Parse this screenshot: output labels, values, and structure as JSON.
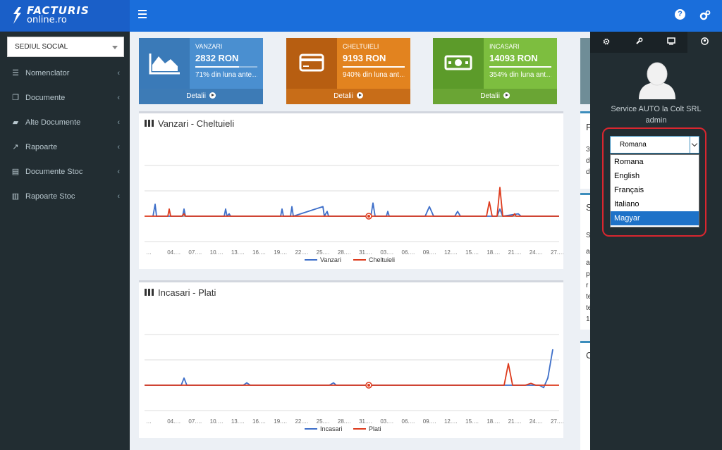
{
  "logo": {
    "line1": "FACTURIS",
    "line2": "online.ro"
  },
  "header": {
    "help_icon": "question-circle-icon",
    "settings_icon": "cogs-icon"
  },
  "sidebar": {
    "company": "SEDIUL SOCIAL",
    "items": [
      {
        "label": "Nomenclator",
        "icon": "list-icon"
      },
      {
        "label": "Documente",
        "icon": "copy-icon"
      },
      {
        "label": "Alte Documente",
        "icon": "folder-open-icon"
      },
      {
        "label": "Rapoarte",
        "icon": "line-chart-icon"
      },
      {
        "label": "Documente Stoc",
        "icon": "file-text-icon"
      },
      {
        "label": "Rapoarte Stoc",
        "icon": "bar-chart-icon"
      }
    ]
  },
  "boxes": [
    {
      "title": "VANZARI",
      "value": "2832 RON",
      "desc": "71% din luna ante…",
      "progress": 0.71,
      "footer": "Detalii",
      "color": "#4a8fd0",
      "icon": "area-chart-icon"
    },
    {
      "title": "CHELTUIELI",
      "value": "9193 RON",
      "desc": "940% din luna ant…",
      "progress": 1.0,
      "footer": "Detalii",
      "color": "#e2831f",
      "icon": "credit-card-icon"
    },
    {
      "title": "INCASARI",
      "value": "14093 RON",
      "desc": "354% din luna ant…",
      "progress": 1.0,
      "footer": "Detalii",
      "color": "#7dbe3f",
      "icon": "money-icon"
    }
  ],
  "chart_data": [
    {
      "type": "line",
      "title": "Vanzari - Cheltuieli",
      "x_ticks": [
        "…",
        "04.…",
        "07.…",
        "10.…",
        "13.…",
        "16.…",
        "19.…",
        "22.…",
        "25.…",
        "28.…",
        "31.…",
        "03.…",
        "06.…",
        "09.…",
        "12.…",
        "15.…",
        "18.…",
        "21.…",
        "24.…",
        "27.…"
      ],
      "grid": true,
      "legend_position": "bottom",
      "series": [
        {
          "name": "Vanzari",
          "color": "#3e6fc9",
          "values": [
            0,
            0,
            0,
            0,
            0,
            0,
            0,
            0,
            0,
            0,
            0,
            0,
            0,
            0,
            0,
            0,
            0,
            0,
            0,
            0,
            0,
            0,
            0,
            0,
            0,
            0,
            0,
            0,
            0,
            0,
            0,
            0,
            0,
            0,
            0,
            0,
            0,
            0,
            0,
            0,
            0,
            0,
            0,
            0,
            0,
            0,
            0,
            0,
            0,
            0,
            0,
            0,
            0,
            0,
            0,
            0,
            0,
            0,
            0,
            0,
            0
          ]
        },
        {
          "name": "Cheltuieli",
          "color": "#dd3a1c",
          "values": [
            0,
            0,
            0,
            0,
            0,
            0,
            0,
            0,
            0,
            0,
            0,
            0,
            0,
            0,
            0,
            0,
            0,
            0,
            0,
            0,
            0,
            0,
            0,
            0,
            0,
            0,
            0,
            0,
            0,
            0,
            0,
            0,
            0,
            0,
            0,
            0,
            0,
            0,
            0,
            0,
            0,
            0,
            0,
            0,
            0,
            0,
            0,
            0,
            0,
            0,
            0,
            0,
            0,
            0,
            0,
            0,
            0,
            0,
            0,
            0,
            0
          ]
        }
      ]
    },
    {
      "type": "line",
      "title": "Incasari - Plati",
      "x_ticks": [
        "…",
        "04.…",
        "07.…",
        "10.…",
        "13.…",
        "16.…",
        "19.…",
        "22.…",
        "25.…",
        "28.…",
        "31.…",
        "03.…",
        "06.…",
        "09.…",
        "12.…",
        "15.…",
        "18.…",
        "21.…",
        "24.…",
        "27.…"
      ],
      "grid": true,
      "legend_position": "bottom",
      "series": [
        {
          "name": "Incasari",
          "color": "#3e6fc9",
          "values": [
            0,
            0,
            0,
            0,
            0,
            0,
            0,
            0,
            0,
            0,
            0,
            0,
            0,
            0,
            0,
            0,
            0,
            0,
            0,
            0,
            0,
            0,
            0,
            0,
            0,
            0,
            0,
            0,
            0,
            0,
            0,
            0,
            0,
            0,
            0,
            0,
            0,
            0,
            0,
            0,
            0,
            0,
            0,
            0,
            0,
            0,
            0,
            0,
            0,
            0,
            0,
            0,
            0,
            0,
            0,
            0,
            0,
            0,
            0,
            0,
            0
          ]
        },
        {
          "name": "Plati",
          "color": "#dd3a1c",
          "values": [
            0,
            0,
            0,
            0,
            0,
            0,
            0,
            0,
            0,
            0,
            0,
            0,
            0,
            0,
            0,
            0,
            0,
            0,
            0,
            0,
            0,
            0,
            0,
            0,
            0,
            0,
            0,
            0,
            0,
            0,
            0,
            0,
            0,
            0,
            0,
            0,
            0,
            0,
            0,
            0,
            0,
            0,
            0,
            0,
            0,
            0,
            0,
            0,
            0,
            0,
            0,
            0,
            0,
            0,
            0,
            0,
            0,
            0,
            0,
            0,
            0
          ]
        }
      ]
    }
  ],
  "chart_shapes": {
    "c1_vanzari": [
      [
        12,
        0
      ],
      [
        15,
        0.5
      ],
      [
        17,
        0
      ],
      [
        54,
        0
      ],
      [
        56,
        0.3
      ],
      [
        58,
        0
      ],
      [
        113,
        0
      ],
      [
        115,
        0.3
      ],
      [
        117,
        0
      ],
      [
        120,
        0.1
      ],
      [
        122,
        0
      ],
      [
        193,
        0
      ],
      [
        195,
        0.3
      ],
      [
        197,
        0
      ],
      [
        207,
        0
      ],
      [
        209,
        0.4
      ],
      [
        211,
        0
      ],
      [
        253,
        0.4
      ],
      [
        255,
        0
      ],
      [
        259,
        0.2
      ],
      [
        261,
        0
      ],
      [
        321,
        0
      ],
      [
        324,
        0.55
      ],
      [
        327,
        0
      ],
      [
        343,
        0
      ],
      [
        345,
        0.2
      ],
      [
        347,
        0
      ],
      [
        398,
        0
      ],
      [
        404,
        0.4
      ],
      [
        410,
        0
      ],
      [
        440,
        0
      ],
      [
        444,
        0.2
      ],
      [
        448,
        0
      ],
      [
        500,
        0
      ],
      [
        504,
        0.3
      ],
      [
        508,
        0
      ],
      [
        530,
        0.1
      ],
      [
        534,
        0
      ],
      [
        588,
        0
      ]
    ],
    "c1_cheltuieli": [
      [
        0,
        0
      ],
      [
        33,
        0
      ],
      [
        35,
        0.3
      ],
      [
        37,
        0
      ],
      [
        53,
        0
      ],
      [
        56,
        0.1
      ],
      [
        58,
        0
      ],
      [
        485,
        0
      ],
      [
        489,
        0.6
      ],
      [
        493,
        0
      ],
      [
        500,
        0
      ],
      [
        504,
        1.2
      ],
      [
        508,
        0
      ],
      [
        522,
        0
      ],
      [
        525,
        0.1
      ],
      [
        527,
        0
      ],
      [
        588,
        0
      ]
    ],
    "c2_incasari": [
      [
        0,
        0
      ],
      [
        52,
        0
      ],
      [
        56,
        0.3
      ],
      [
        60,
        0
      ],
      [
        140,
        0
      ],
      [
        145,
        0.1
      ],
      [
        150,
        0
      ],
      [
        262,
        0
      ],
      [
        268,
        0.1
      ],
      [
        272,
        0
      ],
      [
        560,
        0
      ],
      [
        566,
        -0.1
      ],
      [
        572,
        0.3
      ],
      [
        579,
        1.5
      ]
    ],
    "c2_plati": [
      [
        0,
        0
      ],
      [
        510,
        0
      ],
      [
        516,
        0.9
      ],
      [
        522,
        0
      ],
      [
        540,
        0
      ],
      [
        548,
        0.08
      ],
      [
        555,
        0
      ],
      [
        588,
        0
      ]
    ]
  },
  "right_panel": {
    "chars_top": [
      "F",
      "3",
      "d",
      "d"
    ],
    "chars_mid": [
      "S",
      "S",
      "a",
      "a",
      "p",
      "r",
      "te",
      "te",
      "1"
    ],
    "chars_bottom": [
      "C"
    ]
  },
  "control_sidebar": {
    "tabs": [
      {
        "icon": "gear-icon"
      },
      {
        "icon": "wrench-icon"
      },
      {
        "icon": "desktop-icon"
      },
      {
        "icon": "user-circle-icon"
      }
    ],
    "company_name": "Service AUTO la Colt SRL",
    "role": "admin",
    "language": {
      "selected": "Romana",
      "options": [
        "Romana",
        "English",
        "Français",
        "Italiano",
        "Magyar"
      ],
      "highlighted": "Magyar"
    }
  }
}
